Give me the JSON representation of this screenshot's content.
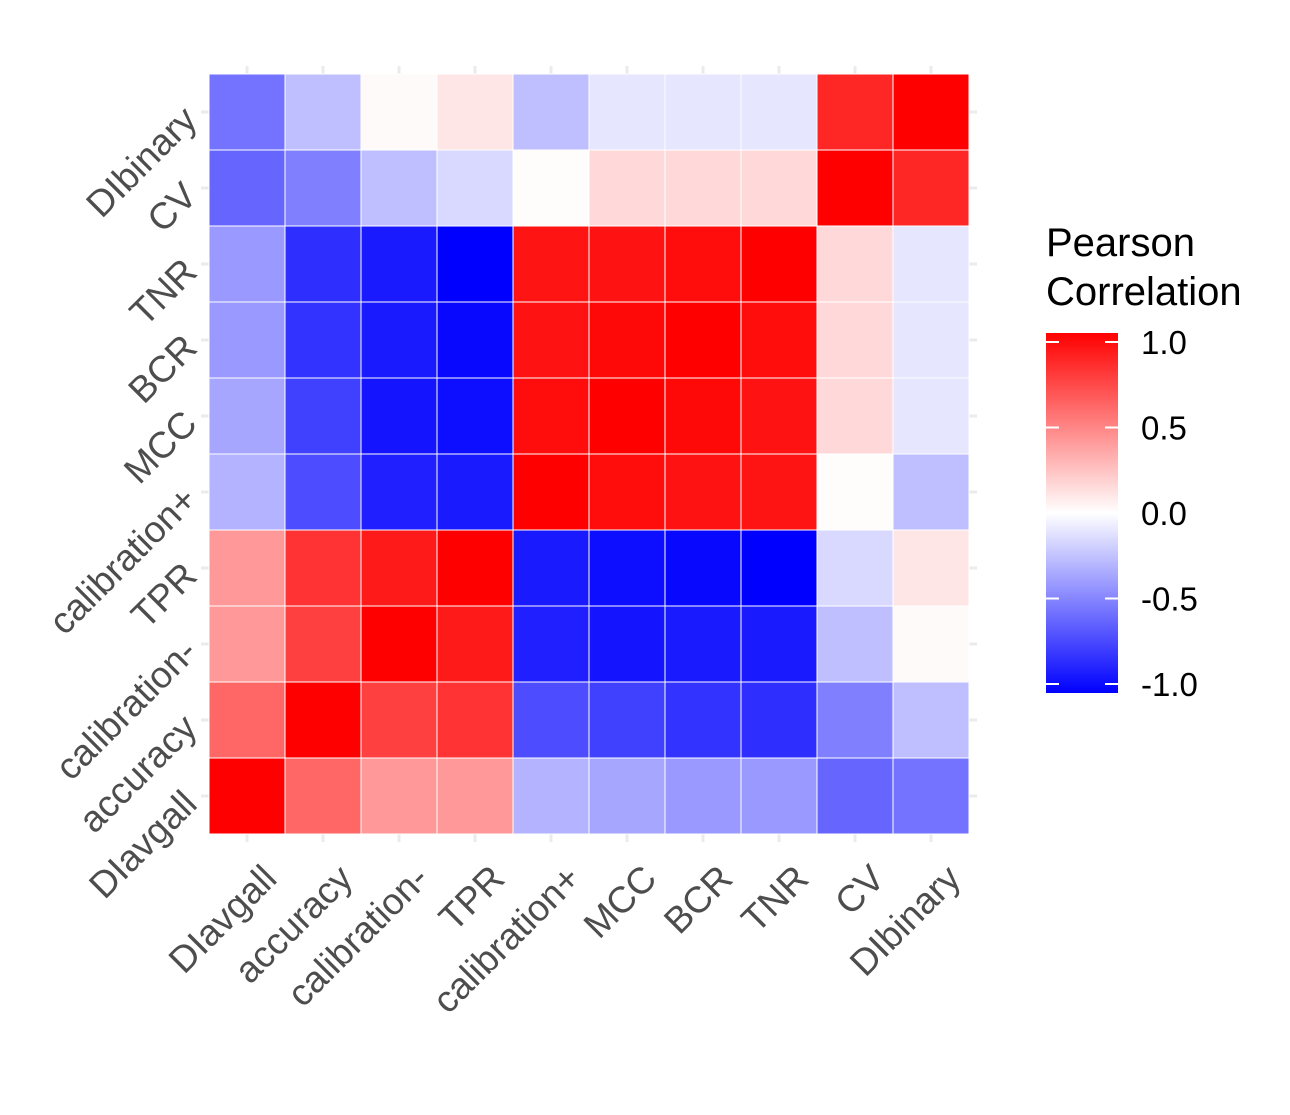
{
  "chart_data": {
    "type": "heatmap",
    "title": "",
    "xlabel": "",
    "ylabel": "",
    "x_categories": [
      "DIavgall",
      "accuracy",
      "calibration-",
      "TPR",
      "calibration+",
      "MCC",
      "BCR",
      "TNR",
      "CV",
      "DIbinary"
    ],
    "y_categories": [
      "DIavgall",
      "accuracy",
      "calibration-",
      "TPR",
      "calibration+",
      "MCC",
      "BCR",
      "TNR",
      "CV",
      "DIbinary"
    ],
    "values": [
      [
        1.0,
        0.6,
        0.4,
        0.4,
        -0.3,
        -0.35,
        -0.4,
        -0.4,
        -0.6,
        -0.55
      ],
      [
        0.6,
        1.0,
        0.75,
        0.8,
        -0.7,
        -0.75,
        -0.8,
        -0.82,
        -0.5,
        -0.25
      ],
      [
        0.4,
        0.75,
        1.0,
        0.9,
        -0.88,
        -0.92,
        -0.9,
        -0.9,
        -0.25,
        0.02
      ],
      [
        0.4,
        0.8,
        0.9,
        1.0,
        -0.9,
        -0.95,
        -0.97,
        -1.0,
        -0.15,
        0.1
      ],
      [
        -0.3,
        -0.7,
        -0.88,
        -0.9,
        1.0,
        0.95,
        0.93,
        0.92,
        0.01,
        -0.25
      ],
      [
        -0.35,
        -0.75,
        -0.92,
        -0.95,
        0.95,
        1.0,
        0.97,
        0.93,
        0.15,
        -0.1
      ],
      [
        -0.4,
        -0.8,
        -0.9,
        -0.97,
        0.93,
        0.97,
        1.0,
        0.95,
        0.15,
        -0.1
      ],
      [
        -0.4,
        -0.82,
        -0.9,
        -1.0,
        0.92,
        0.93,
        0.95,
        1.0,
        0.15,
        -0.1
      ],
      [
        -0.6,
        -0.5,
        -0.25,
        -0.15,
        0.01,
        0.15,
        0.15,
        0.15,
        1.0,
        0.85
      ],
      [
        -0.55,
        -0.25,
        0.02,
        0.1,
        -0.25,
        -0.1,
        -0.1,
        -0.1,
        0.85,
        1.0
      ]
    ],
    "legend": {
      "title_line1": "Pearson",
      "title_line2": "Correlation",
      "position": "right",
      "ticks": [
        1.0,
        0.5,
        0.0,
        -0.5,
        -1.0
      ],
      "tick_labels": [
        "1.0",
        "0.5",
        "0.0",
        "-0.5",
        "-1.0"
      ],
      "range": [
        -1,
        1
      ]
    },
    "colors": {
      "low": "#0000ff",
      "mid": "#ffffff",
      "high": "#ff0000",
      "axis_text": "#4d4d4d",
      "legend_text": "#000000",
      "grid": "#ebebeb"
    }
  }
}
